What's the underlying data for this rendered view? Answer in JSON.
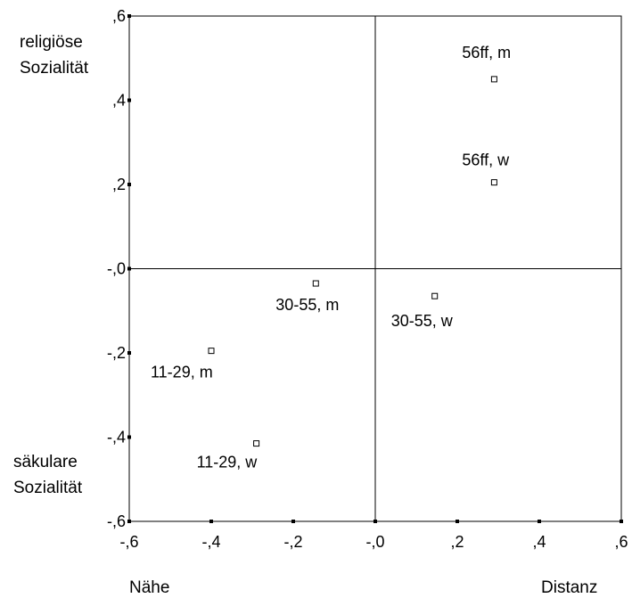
{
  "chart_data": {
    "type": "scatter",
    "xlim": [
      -0.6,
      0.6
    ],
    "ylim": [
      -0.6,
      0.6
    ],
    "x_ticks": [
      {
        "value": -0.6,
        "label": "-,6"
      },
      {
        "value": -0.4,
        "label": "-,4"
      },
      {
        "value": -0.2,
        "label": "-,2"
      },
      {
        "value": 0.0,
        "label": "-,0"
      },
      {
        "value": 0.2,
        "label": ",2"
      },
      {
        "value": 0.4,
        "label": ",4"
      },
      {
        "value": 0.6,
        "label": ",6"
      }
    ],
    "y_ticks": [
      {
        "value": 0.6,
        "label": ",6"
      },
      {
        "value": 0.4,
        "label": ",4"
      },
      {
        "value": 0.2,
        "label": ",2"
      },
      {
        "value": 0.0,
        "label": "-,0"
      },
      {
        "value": -0.2,
        "label": "-,2"
      },
      {
        "value": -0.4,
        "label": "-,4"
      },
      {
        "value": -0.6,
        "label": "-,6"
      }
    ],
    "reference_lines": {
      "x": 0,
      "y": 0
    },
    "x_axis_labels": {
      "left": "Nähe",
      "right": "Distanz"
    },
    "y_axis_labels": {
      "top": [
        "religiöse",
        "Sozialität"
      ],
      "bottom": [
        "säkulare",
        "Sozialität"
      ]
    },
    "points": [
      {
        "label": "56ff, m",
        "x": 0.29,
        "y": 0.45
      },
      {
        "label": "56ff, w",
        "x": 0.29,
        "y": 0.205
      },
      {
        "label": "30-55, m",
        "x": -0.145,
        "y": -0.035
      },
      {
        "label": "30-55, w",
        "x": 0.145,
        "y": -0.065
      },
      {
        "label": "11-29, m",
        "x": -0.4,
        "y": -0.195
      },
      {
        "label": "11-29, w",
        "x": -0.29,
        "y": -0.415
      }
    ]
  }
}
